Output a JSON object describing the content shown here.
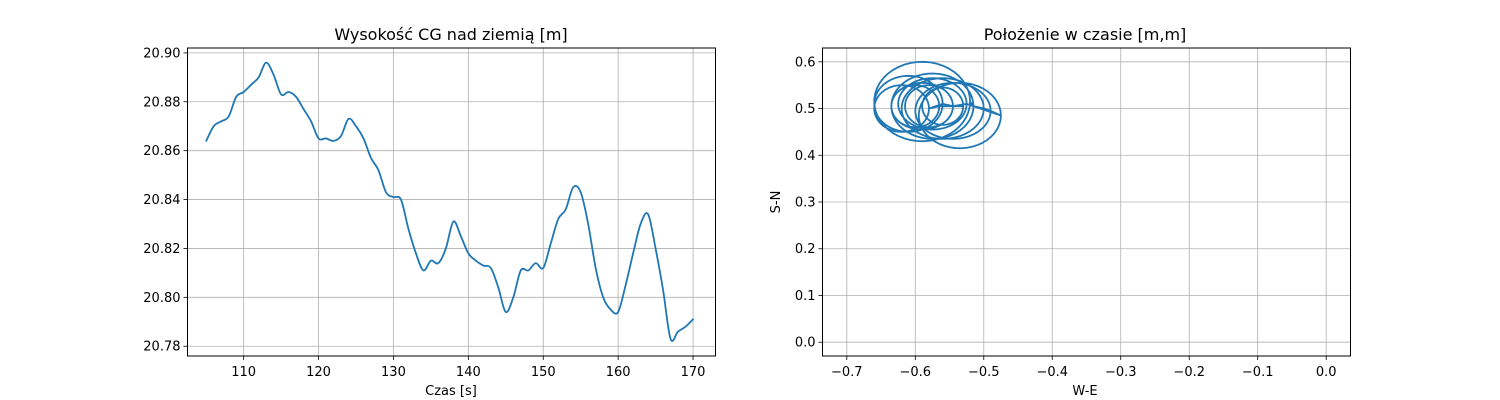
{
  "colors": {
    "series": "#1f77b4",
    "grid": "#b0b0b0"
  },
  "chart_data": [
    {
      "type": "line",
      "title": "Wysokość CG nad ziemią [m]",
      "xlabel": "Czas [s]",
      "ylabel": "",
      "xlim": [
        102.5,
        173
      ],
      "ylim": [
        20.776,
        20.902
      ],
      "xticks": [
        110,
        120,
        130,
        140,
        150,
        160,
        170
      ],
      "yticks": [
        20.78,
        20.8,
        20.82,
        20.84,
        20.86,
        20.88,
        20.9
      ],
      "xtick_labels": [
        "110",
        "120",
        "130",
        "140",
        "150",
        "160",
        "170"
      ],
      "ytick_labels": [
        "20.78",
        "20.80",
        "20.82",
        "20.84",
        "20.86",
        "20.88",
        "20.90"
      ],
      "grid": true,
      "series": [
        {
          "x": [
            105,
            106,
            107,
            108,
            109,
            110,
            111,
            112,
            113,
            114,
            115,
            116,
            117,
            118,
            119,
            120,
            121,
            122,
            123,
            124,
            125,
            126,
            127,
            128,
            129,
            130,
            131,
            132,
            133,
            134,
            135,
            136,
            137,
            138,
            139,
            140,
            141,
            142,
            143,
            144,
            145,
            146,
            147,
            148,
            149,
            150,
            151,
            152,
            153,
            154,
            155,
            156,
            157,
            158,
            159,
            160,
            161,
            162,
            163,
            164,
            165,
            166,
            167,
            168,
            169,
            170
          ],
          "y": [
            20.864,
            20.87,
            20.872,
            20.874,
            20.882,
            20.884,
            20.887,
            20.89,
            20.896,
            20.891,
            20.883,
            20.884,
            20.882,
            20.877,
            20.872,
            20.865,
            20.865,
            20.864,
            20.866,
            20.873,
            20.87,
            20.865,
            20.857,
            20.852,
            20.843,
            20.841,
            20.84,
            20.828,
            20.818,
            20.811,
            20.815,
            20.814,
            20.82,
            20.831,
            20.825,
            20.818,
            20.815,
            20.813,
            20.812,
            20.804,
            20.794,
            20.8,
            20.811,
            20.811,
            20.814,
            20.812,
            20.822,
            20.832,
            20.836,
            20.845,
            20.843,
            20.83,
            20.812,
            20.8,
            20.795,
            20.794,
            20.805,
            20.818,
            20.83,
            20.834,
            20.82,
            20.803,
            20.783,
            20.786,
            20.788,
            20.791
          ]
        }
      ]
    },
    {
      "type": "line",
      "title": "Położenie w czasie [m,m]",
      "xlabel": "W-E",
      "ylabel": "S-N",
      "xlim": [
        -0.7355,
        0.0355
      ],
      "ylim": [
        -0.0295,
        0.6295
      ],
      "xticks": [
        -0.7,
        -0.6,
        -0.5,
        -0.4,
        -0.3,
        -0.2,
        -0.1,
        0.0
      ],
      "yticks": [
        0.0,
        0.1,
        0.2,
        0.3,
        0.4,
        0.5,
        0.6
      ],
      "xtick_labels": [
        "−0.7",
        "−0.6",
        "−0.5",
        "−0.4",
        "−0.3",
        "−0.2",
        "−0.1",
        "0.0"
      ],
      "ytick_labels": [
        "0.0",
        "0.1",
        "0.2",
        "0.3",
        "0.4",
        "0.5",
        "0.6"
      ],
      "grid": true,
      "trajectory_loops": [
        {
          "cx": -0.59,
          "cy": 0.515,
          "rx": 0.07,
          "ry": 0.085
        },
        {
          "cx": -0.575,
          "cy": 0.505,
          "rx": 0.06,
          "ry": 0.07
        },
        {
          "cx": -0.56,
          "cy": 0.5,
          "rx": 0.06,
          "ry": 0.065
        },
        {
          "cx": -0.545,
          "cy": 0.495,
          "rx": 0.055,
          "ry": 0.06
        },
        {
          "cx": -0.535,
          "cy": 0.485,
          "rx": 0.06,
          "ry": 0.07
        },
        {
          "cx": -0.575,
          "cy": 0.51,
          "rx": 0.05,
          "ry": 0.055
        },
        {
          "cx": -0.59,
          "cy": 0.505,
          "rx": 0.045,
          "ry": 0.05
        },
        {
          "cx": -0.61,
          "cy": 0.51,
          "rx": 0.05,
          "ry": 0.06
        },
        {
          "cx": -0.62,
          "cy": 0.5,
          "rx": 0.04,
          "ry": 0.05
        },
        {
          "cx": -0.6,
          "cy": 0.505,
          "rx": 0.035,
          "ry": 0.045
        },
        {
          "cx": -0.58,
          "cy": 0.505,
          "rx": 0.035,
          "ry": 0.045
        },
        {
          "cx": -0.56,
          "cy": 0.505,
          "rx": 0.03,
          "ry": 0.04
        }
      ]
    }
  ]
}
